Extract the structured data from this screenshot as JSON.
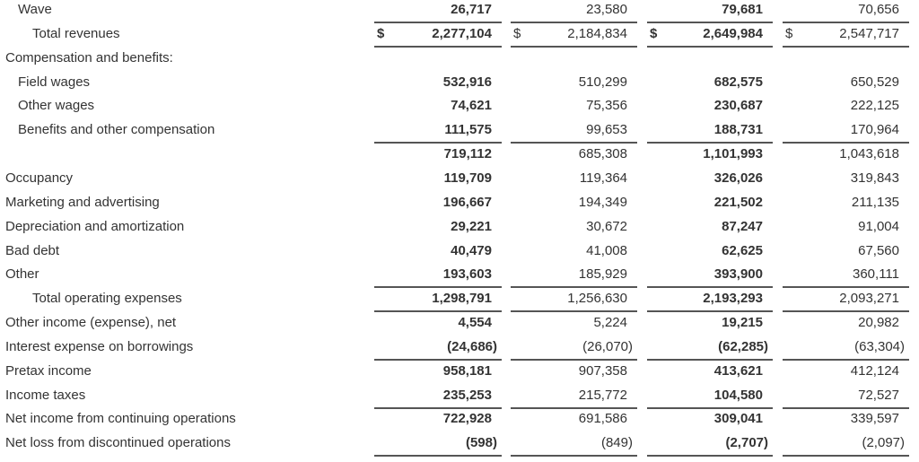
{
  "rows": [
    {
      "label": "Wave",
      "indent": 1,
      "values": [
        "26,717",
        "23,580",
        "79,681",
        "70,656"
      ],
      "rule": true
    },
    {
      "label": "Total revenues",
      "indent": 2,
      "values": [
        "2,277,104",
        "2,184,834",
        "2,649,984",
        "2,547,717"
      ],
      "dollar": "$",
      "rule": true
    },
    {
      "label": "Compensation and benefits:",
      "indent": 0,
      "values": [
        "",
        "",
        "",
        ""
      ]
    },
    {
      "label": "Field wages",
      "indent": 1,
      "values": [
        "532,916",
        "510,299",
        "682,575",
        "650,529"
      ]
    },
    {
      "label": "Other wages",
      "indent": 1,
      "values": [
        "74,621",
        "75,356",
        "230,687",
        "222,125"
      ]
    },
    {
      "label": "Benefits and other compensation",
      "indent": 1,
      "values": [
        "111,575",
        "99,653",
        "188,731",
        "170,964"
      ],
      "rule": true
    },
    {
      "label": "",
      "indent": 0,
      "values": [
        "719,112",
        "685,308",
        "1,101,993",
        "1,043,618"
      ]
    },
    {
      "label": "Occupancy",
      "indent": 0,
      "values": [
        "119,709",
        "119,364",
        "326,026",
        "319,843"
      ]
    },
    {
      "label": "Marketing and advertising",
      "indent": 0,
      "values": [
        "196,667",
        "194,349",
        "221,502",
        "211,135"
      ]
    },
    {
      "label": "Depreciation and amortization",
      "indent": 0,
      "values": [
        "29,221",
        "30,672",
        "87,247",
        "91,004"
      ]
    },
    {
      "label": "Bad debt",
      "indent": 0,
      "values": [
        "40,479",
        "41,008",
        "62,625",
        "67,560"
      ]
    },
    {
      "label": "Other",
      "indent": 0,
      "values": [
        "193,603",
        "185,929",
        "393,900",
        "360,111"
      ],
      "rule": true
    },
    {
      "label": "Total operating expenses",
      "indent": 2,
      "values": [
        "1,298,791",
        "1,256,630",
        "2,193,293",
        "2,093,271"
      ],
      "rule": true
    },
    {
      "label": "Other income (expense), net",
      "indent": 0,
      "values": [
        "4,554",
        "5,224",
        "19,215",
        "20,982"
      ]
    },
    {
      "label": "Interest expense on borrowings",
      "indent": 0,
      "values": [
        "(24,686)",
        "(26,070)",
        "(62,285)",
        "(63,304)"
      ],
      "rule": true
    },
    {
      "label": "Pretax income",
      "indent": 0,
      "values": [
        "958,181",
        "907,358",
        "413,621",
        "412,124"
      ]
    },
    {
      "label": "Income taxes",
      "indent": 0,
      "values": [
        "235,253",
        "215,772",
        "104,580",
        "72,527"
      ],
      "rule": true
    },
    {
      "label": "Net income from continuing operations",
      "indent": 0,
      "values": [
        "722,928",
        "691,586",
        "309,041",
        "339,597"
      ]
    },
    {
      "label": "Net loss from discontinued operations",
      "indent": 0,
      "values": [
        "(598)",
        "(849)",
        "(2,707)",
        "(2,097)"
      ],
      "rule": true
    }
  ]
}
